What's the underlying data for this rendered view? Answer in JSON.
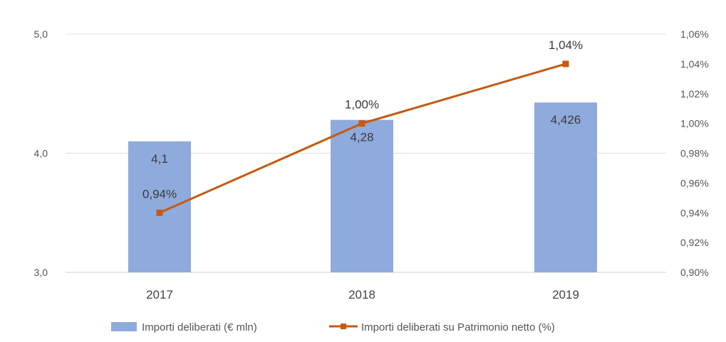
{
  "chart_data": {
    "type": "bar+line",
    "categories": [
      "2017",
      "2018",
      "2019"
    ],
    "series": [
      {
        "name": "Importi deliberati (€ mln)",
        "type": "bar",
        "axis": "left",
        "values": [
          4.1,
          4.28,
          4.426
        ],
        "labels": [
          "4,1",
          "4,28",
          "4,426"
        ],
        "color": "#8faadc"
      },
      {
        "name": "Importi deliberati su Patrimonio netto (%)",
        "type": "line",
        "axis": "right",
        "values": [
          0.94,
          1.0,
          1.04
        ],
        "labels": [
          "0,94%",
          "1,00%",
          "1,04%"
        ],
        "color": "#c55a11"
      }
    ],
    "y_left": {
      "min": 3.0,
      "max": 5.0,
      "ticks": [
        3.0,
        4.0,
        5.0
      ],
      "tick_labels": [
        "3,0",
        "4,0",
        "5,0"
      ]
    },
    "y_right": {
      "min": 0.9,
      "max": 1.06,
      "ticks": [
        0.9,
        0.92,
        0.94,
        0.96,
        0.98,
        1.0,
        1.02,
        1.04,
        1.06
      ],
      "tick_labels": [
        "0,90%",
        "0,92%",
        "0,94%",
        "0,96%",
        "0,98%",
        "1,00%",
        "1,02%",
        "1,04%",
        "1,06%"
      ]
    },
    "grid": true,
    "legend": "bottom"
  }
}
